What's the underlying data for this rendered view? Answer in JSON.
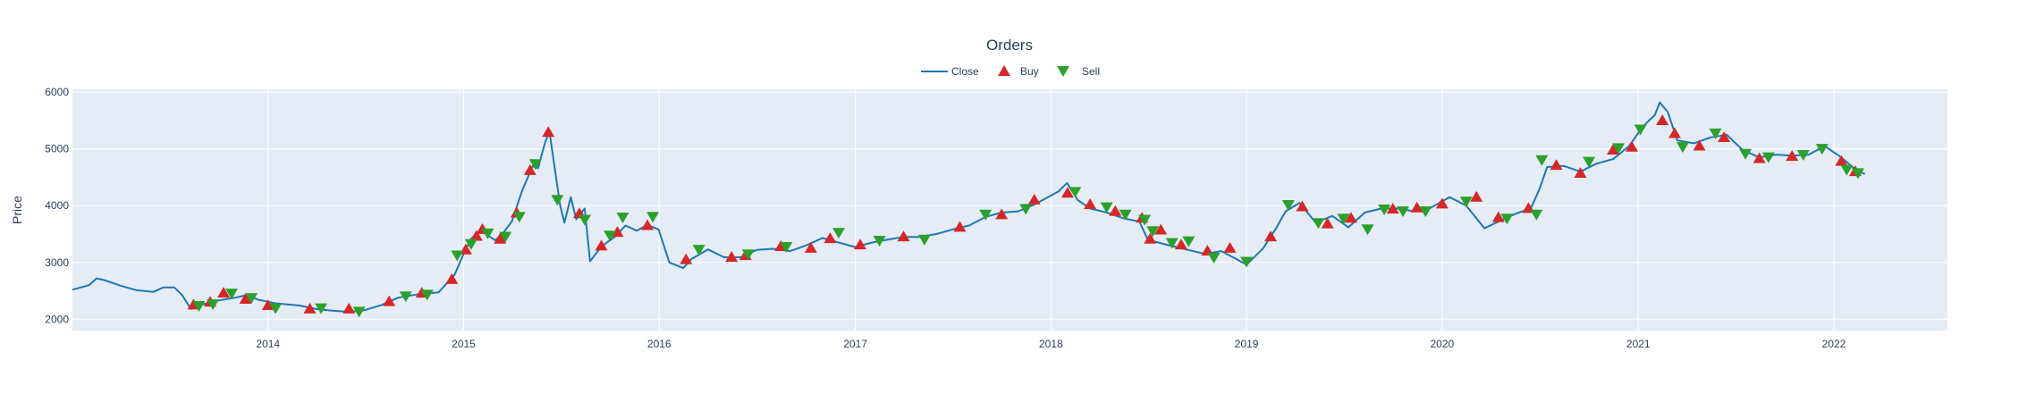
{
  "chart_data": {
    "type": "line",
    "title": "Orders",
    "xlabel": "",
    "ylabel": "Price",
    "xlim": [
      "2013-01-01",
      "2022-08-01"
    ],
    "ylim": [
      1800,
      6050
    ],
    "x_ticks": [
      "2014",
      "2015",
      "2016",
      "2017",
      "2018",
      "2019",
      "2020",
      "2021",
      "2022"
    ],
    "y_ticks": [
      2000,
      3000,
      4000,
      5000,
      6000
    ],
    "grid": true,
    "legend_position": "top-center",
    "colors": {
      "plot_bg": "#e5ecf6",
      "grid": "#ffffff",
      "line": "#1f77b4",
      "buy": "#d62728",
      "sell": "#2ca02c",
      "text": "#2a3f5f"
    },
    "series": [
      {
        "name": "Close",
        "kind": "line",
        "points": [
          [
            "2013-01-01",
            2520
          ],
          [
            "2013-02-01",
            2600
          ],
          [
            "2013-02-15",
            2720
          ],
          [
            "2013-03-01",
            2690
          ],
          [
            "2013-04-01",
            2590
          ],
          [
            "2013-05-01",
            2510
          ],
          [
            "2013-06-01",
            2480
          ],
          [
            "2013-06-20",
            2560
          ],
          [
            "2013-07-10",
            2560
          ],
          [
            "2013-07-25",
            2420
          ],
          [
            "2013-08-10",
            2180
          ],
          [
            "2013-09-01",
            2260
          ],
          [
            "2013-10-01",
            2330
          ],
          [
            "2013-11-01",
            2380
          ],
          [
            "2013-11-20",
            2420
          ],
          [
            "2013-12-15",
            2340
          ],
          [
            "2014-01-15",
            2280
          ],
          [
            "2014-03-01",
            2240
          ],
          [
            "2014-04-01",
            2180
          ],
          [
            "2014-05-01",
            2150
          ],
          [
            "2014-06-01",
            2130
          ],
          [
            "2014-07-01",
            2160
          ],
          [
            "2014-08-01",
            2250
          ],
          [
            "2014-09-01",
            2380
          ],
          [
            "2014-10-15",
            2450
          ],
          [
            "2014-11-15",
            2470
          ],
          [
            "2014-12-15",
            2780
          ],
          [
            "2015-01-01",
            3150
          ],
          [
            "2015-01-15",
            3420
          ],
          [
            "2015-02-01",
            3560
          ],
          [
            "2015-02-15",
            3480
          ],
          [
            "2015-03-01",
            3390
          ],
          [
            "2015-03-15",
            3510
          ],
          [
            "2015-04-01",
            3720
          ],
          [
            "2015-04-20",
            4260
          ],
          [
            "2015-05-10",
            4700
          ],
          [
            "2015-05-20",
            4660
          ],
          [
            "2015-06-01",
            5080
          ],
          [
            "2015-06-10",
            5320
          ],
          [
            "2015-06-20",
            4660
          ],
          [
            "2015-06-30",
            4010
          ],
          [
            "2015-07-08",
            3700
          ],
          [
            "2015-07-20",
            4150
          ],
          [
            "2015-07-30",
            3760
          ],
          [
            "2015-08-15",
            3950
          ],
          [
            "2015-08-25",
            3020
          ],
          [
            "2015-09-15",
            3280
          ],
          [
            "2015-10-10",
            3450
          ],
          [
            "2015-10-30",
            3650
          ],
          [
            "2015-11-20",
            3560
          ],
          [
            "2015-12-10",
            3660
          ],
          [
            "2015-12-31",
            3580
          ],
          [
            "2016-01-20",
            3000
          ],
          [
            "2016-02-15",
            2900
          ],
          [
            "2016-03-01",
            3060
          ],
          [
            "2016-04-01",
            3230
          ],
          [
            "2016-05-01",
            3090
          ],
          [
            "2016-06-01",
            3090
          ],
          [
            "2016-07-01",
            3220
          ],
          [
            "2016-08-01",
            3240
          ],
          [
            "2016-09-01",
            3200
          ],
          [
            "2016-10-01",
            3300
          ],
          [
            "2016-11-01",
            3430
          ],
          [
            "2016-12-01",
            3350
          ],
          [
            "2017-01-01",
            3270
          ],
          [
            "2017-02-01",
            3350
          ],
          [
            "2017-03-01",
            3400
          ],
          [
            "2017-04-01",
            3450
          ],
          [
            "2017-05-01",
            3450
          ],
          [
            "2017-06-01",
            3500
          ],
          [
            "2017-07-01",
            3580
          ],
          [
            "2017-08-01",
            3650
          ],
          [
            "2017-09-01",
            3800
          ],
          [
            "2017-10-01",
            3880
          ],
          [
            "2017-11-01",
            3900
          ],
          [
            "2017-12-01",
            4020
          ],
          [
            "2018-01-15",
            4250
          ],
          [
            "2018-01-31",
            4400
          ],
          [
            "2018-02-20",
            4100
          ],
          [
            "2018-03-15",
            3950
          ],
          [
            "2018-04-15",
            3880
          ],
          [
            "2018-05-15",
            3780
          ],
          [
            "2018-06-15",
            3720
          ],
          [
            "2018-07-01",
            3400
          ],
          [
            "2018-08-01",
            3320
          ],
          [
            "2018-09-01",
            3250
          ],
          [
            "2018-10-15",
            3150
          ],
          [
            "2018-11-15",
            3200
          ],
          [
            "2018-12-15",
            3050
          ],
          [
            "2019-01-01",
            2960
          ],
          [
            "2019-02-01",
            3250
          ],
          [
            "2019-02-25",
            3600
          ],
          [
            "2019-03-15",
            3900
          ],
          [
            "2019-04-10",
            4050
          ],
          [
            "2019-05-10",
            3700
          ],
          [
            "2019-06-10",
            3820
          ],
          [
            "2019-07-10",
            3620
          ],
          [
            "2019-08-10",
            3880
          ],
          [
            "2019-09-10",
            3950
          ],
          [
            "2019-10-10",
            3950
          ],
          [
            "2019-11-10",
            3900
          ],
          [
            "2019-12-10",
            3960
          ],
          [
            "2020-01-15",
            4150
          ],
          [
            "2020-02-15",
            4000
          ],
          [
            "2020-03-20",
            3600
          ],
          [
            "2020-04-15",
            3720
          ],
          [
            "2020-05-15",
            3850
          ],
          [
            "2020-06-15",
            3960
          ],
          [
            "2020-07-01",
            4300
          ],
          [
            "2020-07-15",
            4680
          ],
          [
            "2020-08-15",
            4700
          ],
          [
            "2020-09-15",
            4600
          ],
          [
            "2020-10-15",
            4740
          ],
          [
            "2020-11-15",
            4820
          ],
          [
            "2020-12-15",
            5050
          ],
          [
            "2021-01-10",
            5400
          ],
          [
            "2021-02-01",
            5600
          ],
          [
            "2021-02-10",
            5820
          ],
          [
            "2021-02-25",
            5650
          ],
          [
            "2021-03-15",
            5150
          ],
          [
            "2021-04-15",
            5100
          ],
          [
            "2021-05-15",
            5200
          ],
          [
            "2021-06-15",
            5250
          ],
          [
            "2021-07-15",
            4980
          ],
          [
            "2021-08-15",
            4850
          ],
          [
            "2021-09-15",
            4900
          ],
          [
            "2021-10-15",
            4880
          ],
          [
            "2021-11-15",
            4900
          ],
          [
            "2021-12-15",
            5050
          ],
          [
            "2022-01-15",
            4850
          ],
          [
            "2022-02-15",
            4600
          ],
          [
            "2022-02-28",
            4560
          ]
        ]
      },
      {
        "name": "Buy",
        "kind": "markers",
        "points": [
          [
            "2013-08-15",
            2250
          ],
          [
            "2013-09-15",
            2300
          ],
          [
            "2013-10-10",
            2460
          ],
          [
            "2013-11-20",
            2350
          ],
          [
            "2014-01-01",
            2240
          ],
          [
            "2014-03-20",
            2180
          ],
          [
            "2014-06-01",
            2180
          ],
          [
            "2014-08-15",
            2310
          ],
          [
            "2014-10-15",
            2460
          ],
          [
            "2014-12-10",
            2700
          ],
          [
            "2015-01-05",
            3220
          ],
          [
            "2015-01-25",
            3460
          ],
          [
            "2015-02-05",
            3580
          ],
          [
            "2015-03-10",
            3410
          ],
          [
            "2015-04-10",
            3870
          ],
          [
            "2015-05-05",
            4620
          ],
          [
            "2015-06-08",
            5290
          ],
          [
            "2015-08-05",
            3860
          ],
          [
            "2015-09-15",
            3290
          ],
          [
            "2015-10-15",
            3530
          ],
          [
            "2015-12-10",
            3650
          ],
          [
            "2016-02-20",
            3050
          ],
          [
            "2016-05-15",
            3090
          ],
          [
            "2016-06-10",
            3120
          ],
          [
            "2016-08-15",
            3280
          ],
          [
            "2016-10-10",
            3250
          ],
          [
            "2016-11-15",
            3420
          ],
          [
            "2017-01-10",
            3310
          ],
          [
            "2017-04-01",
            3450
          ],
          [
            "2017-07-15",
            3620
          ],
          [
            "2017-10-01",
            3840
          ],
          [
            "2017-12-01",
            4100
          ],
          [
            "2018-02-01",
            4220
          ],
          [
            "2018-03-15",
            4020
          ],
          [
            "2018-05-01",
            3900
          ],
          [
            "2018-06-20",
            3780
          ],
          [
            "2018-07-05",
            3410
          ],
          [
            "2018-07-25",
            3570
          ],
          [
            "2018-09-01",
            3310
          ],
          [
            "2018-10-20",
            3200
          ],
          [
            "2018-12-01",
            3250
          ],
          [
            "2019-02-15",
            3450
          ],
          [
            "2019-04-15",
            3980
          ],
          [
            "2019-06-01",
            3680
          ],
          [
            "2019-07-15",
            3780
          ],
          [
            "2019-10-01",
            3940
          ],
          [
            "2019-11-15",
            3960
          ],
          [
            "2020-01-01",
            4030
          ],
          [
            "2020-03-05",
            4150
          ],
          [
            "2020-04-15",
            3790
          ],
          [
            "2020-06-10",
            3950
          ],
          [
            "2020-08-01",
            4710
          ],
          [
            "2020-09-15",
            4570
          ],
          [
            "2020-11-15",
            4980
          ],
          [
            "2020-12-20",
            5030
          ],
          [
            "2021-02-15",
            5500
          ],
          [
            "2021-03-10",
            5270
          ],
          [
            "2021-04-25",
            5050
          ],
          [
            "2021-06-10",
            5200
          ],
          [
            "2021-08-15",
            4830
          ],
          [
            "2021-10-15",
            4870
          ],
          [
            "2022-01-15",
            4780
          ],
          [
            "2022-02-10",
            4600
          ]
        ]
      },
      {
        "name": "Sell",
        "kind": "markers",
        "points": [
          [
            "2013-08-25",
            2240
          ],
          [
            "2013-09-20",
            2270
          ],
          [
            "2013-10-25",
            2460
          ],
          [
            "2013-12-01",
            2380
          ],
          [
            "2014-01-15",
            2200
          ],
          [
            "2014-04-10",
            2200
          ],
          [
            "2014-06-20",
            2140
          ],
          [
            "2014-09-15",
            2410
          ],
          [
            "2014-10-25",
            2440
          ],
          [
            "2014-12-20",
            3130
          ],
          [
            "2015-01-15",
            3330
          ],
          [
            "2015-02-15",
            3520
          ],
          [
            "2015-03-20",
            3460
          ],
          [
            "2015-04-15",
            3810
          ],
          [
            "2015-05-15",
            4740
          ],
          [
            "2015-06-25",
            4110
          ],
          [
            "2015-08-15",
            3760
          ],
          [
            "2015-10-01",
            3480
          ],
          [
            "2015-10-25",
            3800
          ],
          [
            "2015-12-20",
            3810
          ],
          [
            "2016-03-15",
            3230
          ],
          [
            "2016-06-15",
            3150
          ],
          [
            "2016-08-25",
            3280
          ],
          [
            "2016-12-01",
            3530
          ],
          [
            "2017-02-15",
            3390
          ],
          [
            "2017-05-10",
            3410
          ],
          [
            "2017-09-01",
            3850
          ],
          [
            "2017-11-15",
            3950
          ],
          [
            "2018-02-15",
            4250
          ],
          [
            "2018-04-15",
            3980
          ],
          [
            "2018-05-20",
            3850
          ],
          [
            "2018-06-25",
            3760
          ],
          [
            "2018-07-10",
            3560
          ],
          [
            "2018-08-15",
            3350
          ],
          [
            "2018-09-15",
            3380
          ],
          [
            "2018-11-01",
            3090
          ],
          [
            "2019-01-01",
            3020
          ],
          [
            "2019-03-20",
            4020
          ],
          [
            "2019-05-15",
            3700
          ],
          [
            "2019-07-01",
            3780
          ],
          [
            "2019-08-15",
            3590
          ],
          [
            "2019-09-15",
            3940
          ],
          [
            "2019-10-20",
            3910
          ],
          [
            "2019-12-01",
            3910
          ],
          [
            "2020-02-15",
            4080
          ],
          [
            "2020-05-01",
            3780
          ],
          [
            "2020-06-25",
            3850
          ],
          [
            "2020-07-05",
            4810
          ],
          [
            "2020-10-01",
            4780
          ],
          [
            "2020-11-25",
            5020
          ],
          [
            "2021-01-05",
            5350
          ],
          [
            "2021-03-25",
            5040
          ],
          [
            "2021-05-25",
            5280
          ],
          [
            "2021-07-20",
            4920
          ],
          [
            "2021-09-01",
            4860
          ],
          [
            "2021-11-05",
            4900
          ],
          [
            "2021-12-10",
            5010
          ],
          [
            "2022-01-25",
            4640
          ],
          [
            "2022-02-15",
            4580
          ]
        ]
      }
    ]
  }
}
